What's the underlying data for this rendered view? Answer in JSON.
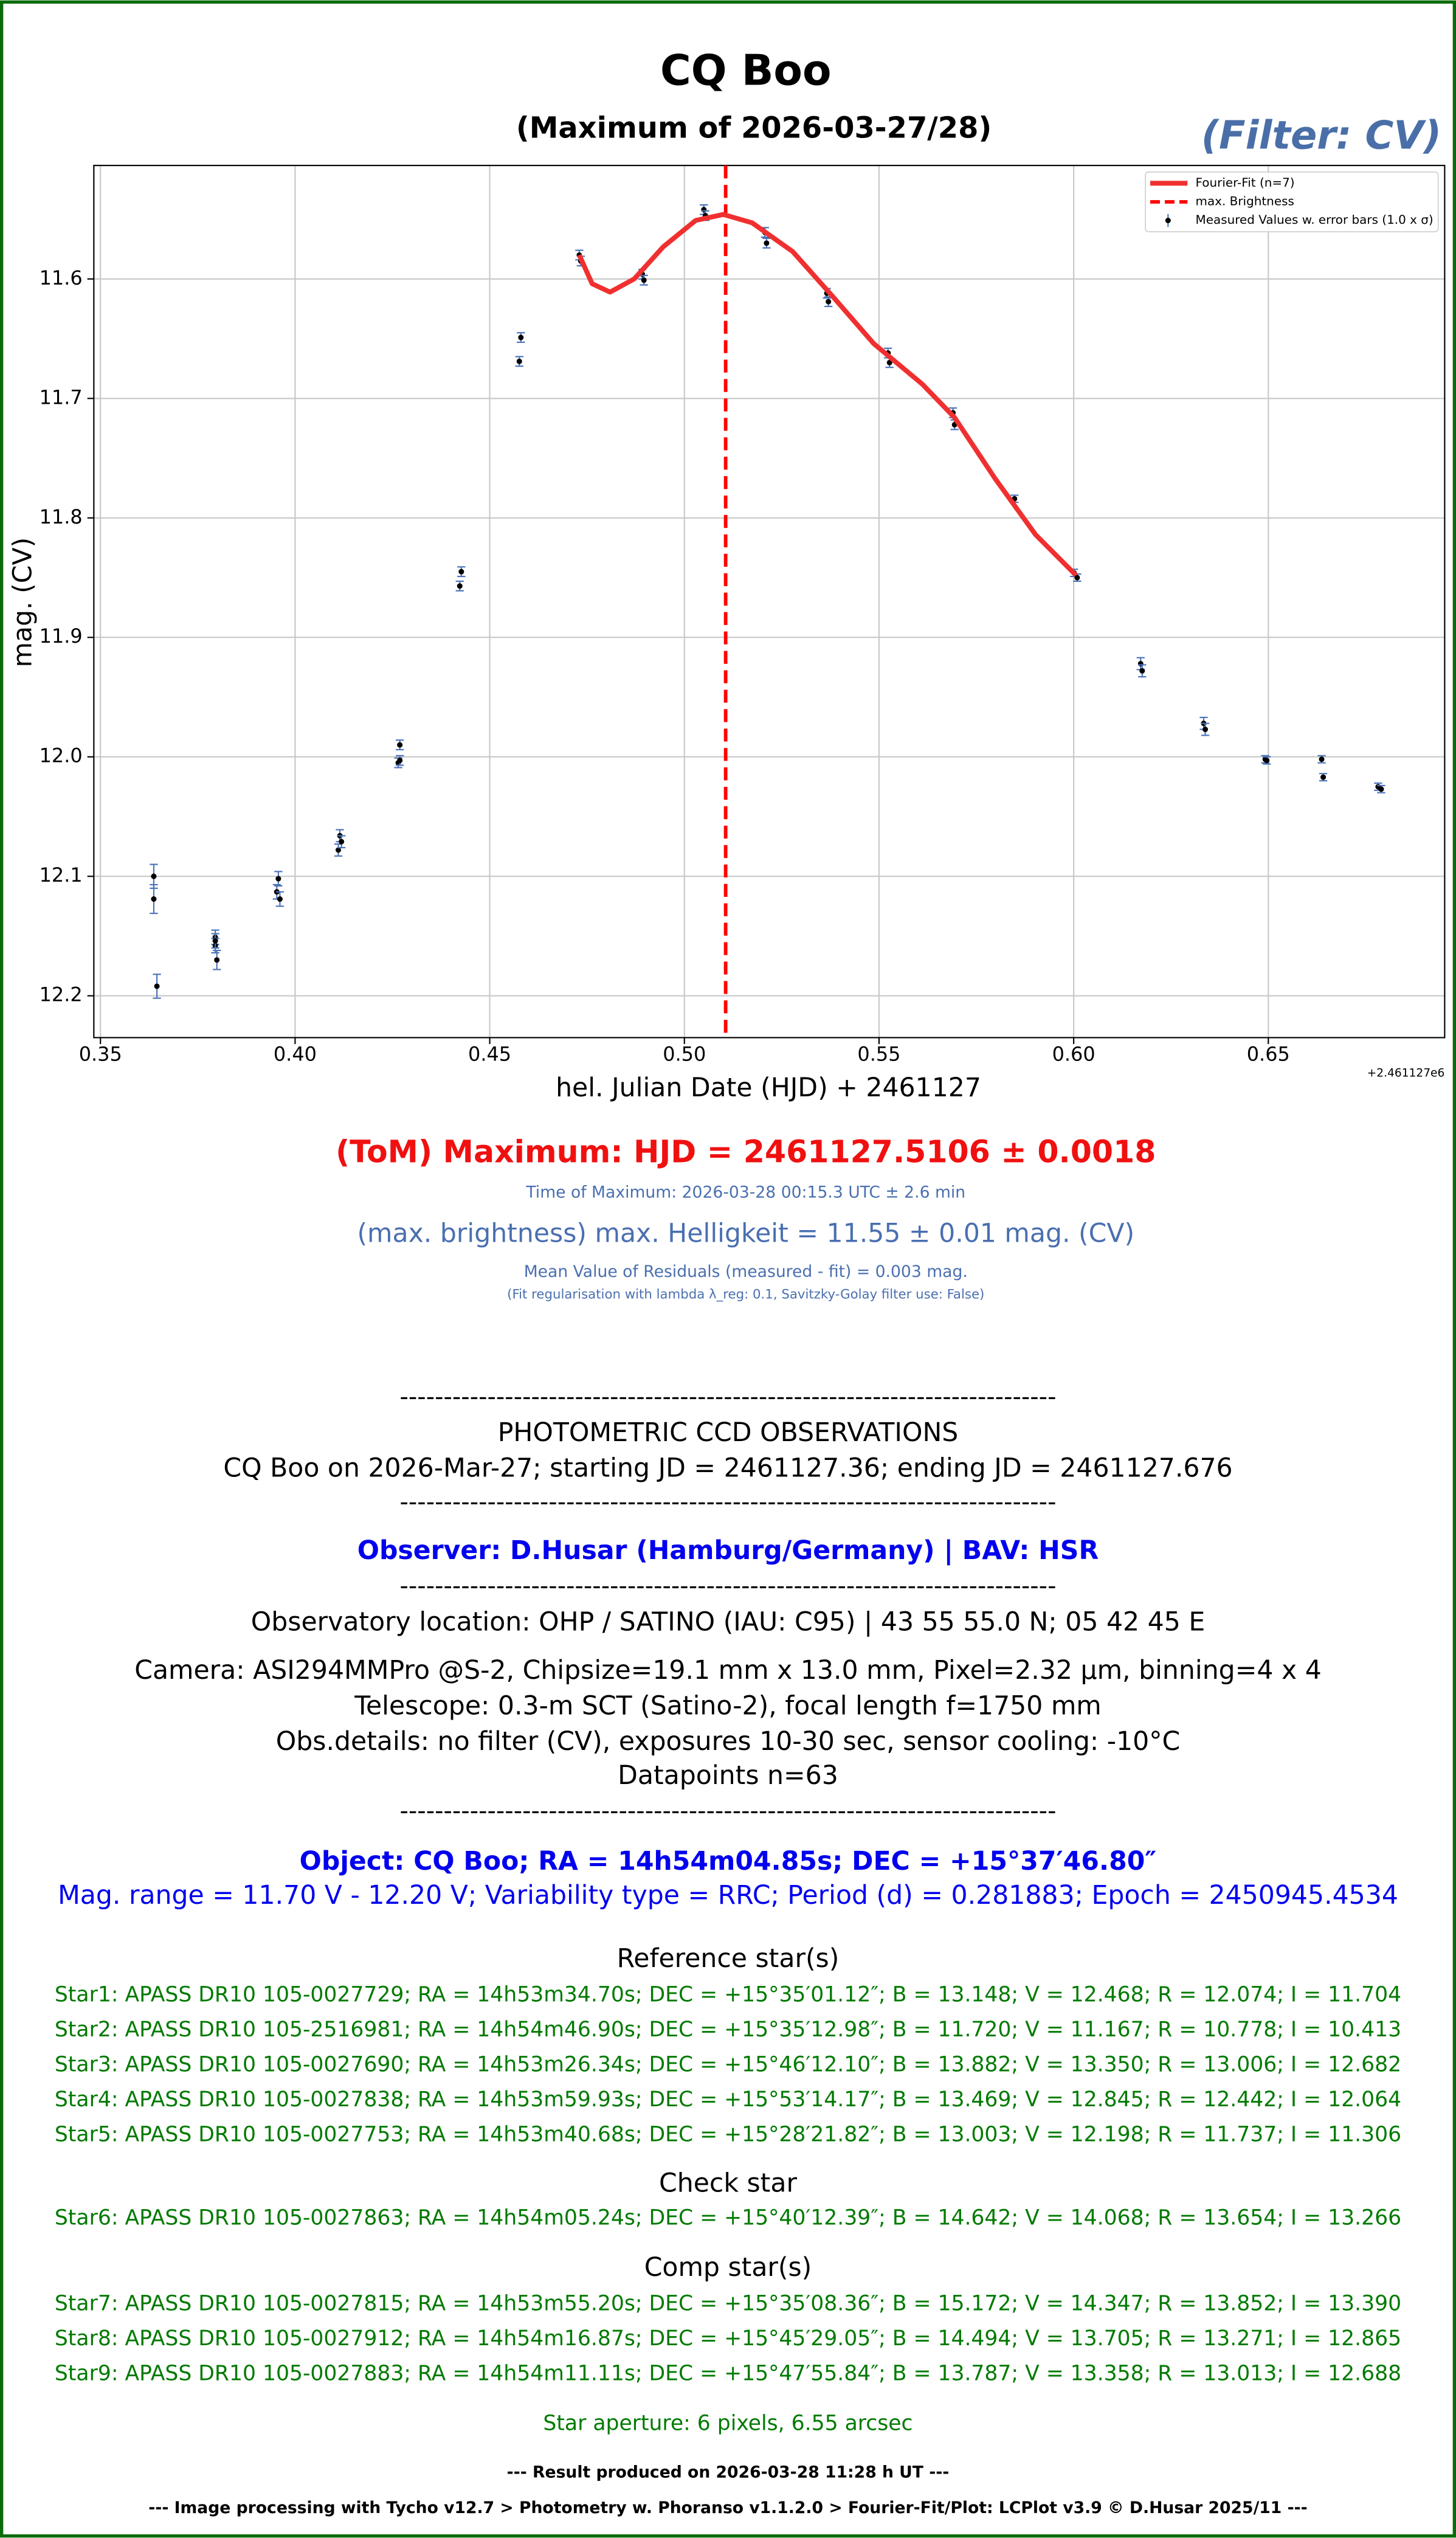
{
  "chart_data": {
    "type": "lightcurve",
    "title": "CQ Boo",
    "subtitle": "(Maximum of 2026-03-27/28)",
    "filter_label": "(Filter: CV)",
    "x_label": "hel. Julian Date (HJD) + 2461127",
    "y_label": "mag. (CV)",
    "offset_label": "+2.461127e6",
    "xlim": [
      0.3483,
      0.6953
    ],
    "ylim": [
      11.505,
      12.235
    ],
    "y_inverted": true,
    "xticks": [
      0.35,
      {
        "value": 0.4,
        "label": "0.40"
      },
      0.45,
      {
        "value": 0.5,
        "label": "0.50"
      },
      0.55,
      {
        "value": 0.6,
        "label": "0.60"
      },
      0.65
    ],
    "yticks": [
      11.6,
      11.7,
      11.8,
      11.9,
      {
        "value": 12,
        "label": "12.0"
      },
      12.1,
      12.2
    ],
    "grid": true,
    "legend": "upper right",
    "series": [
      {
        "name": "Fourier-Fit (n=7)",
        "color": "#f03030",
        "x": [
          0.473,
          0.4763,
          0.4809,
          0.4871,
          0.4946,
          0.5029,
          0.51,
          0.5174,
          0.5278,
          0.5382,
          0.5486,
          0.5611,
          0.5694,
          0.5798,
          0.5902,
          0.6006
        ],
        "values": [
          11.58,
          11.604,
          11.611,
          11.6,
          11.573,
          11.551,
          11.546,
          11.553,
          11.577,
          11.615,
          11.654,
          11.688,
          11.716,
          11.767,
          11.814,
          11.848
        ]
      },
      {
        "name": "max. Brightness",
        "color": "#ff0000",
        "x": [
          0.5106
        ]
      },
      {
        "name": "Measured Values w. error bars (1.0 x σ)",
        "color": "#000000",
        "error_color": "#4a72b8",
        "x": [
          0.3637,
          0.3637,
          0.3645,
          0.3795,
          0.3795,
          0.3799,
          0.3795,
          0.3957,
          0.3953,
          0.3961,
          0.4115,
          0.4111,
          0.4119,
          0.4269,
          0.4265,
          0.4269,
          0.4427,
          0.4423,
          0.458,
          0.4576,
          0.473,
          0.4734,
          0.4892,
          0.4896,
          0.505,
          0.5054,
          0.5207,
          0.5211,
          0.5366,
          0.537,
          0.5523,
          0.5527,
          0.569,
          0.5694,
          0.5848,
          0.6001,
          0.6009,
          0.6172,
          0.6176,
          0.6334,
          0.6338,
          0.6492,
          0.6496,
          0.6637,
          0.6641,
          0.6782,
          0.679
        ],
        "values": [
          12.1,
          12.119,
          12.192,
          12.151,
          12.158,
          12.17,
          12.154,
          12.102,
          12.113,
          12.119,
          12.066,
          12.078,
          12.071,
          11.99,
          12.005,
          12.003,
          11.845,
          11.857,
          11.649,
          11.669,
          11.58,
          11.585,
          11.596,
          11.601,
          11.542,
          11.547,
          11.561,
          11.57,
          11.612,
          11.619,
          11.662,
          11.67,
          11.712,
          11.722,
          11.784,
          11.846,
          11.85,
          11.922,
          11.928,
          11.972,
          11.977,
          12.002,
          12.003,
          12.002,
          12.017,
          12.025,
          12.027
        ],
        "errors": [
          0.01,
          0.012,
          0.01,
          0.006,
          0.006,
          0.008,
          0.006,
          0.006,
          0.006,
          0.006,
          0.005,
          0.005,
          0.005,
          0.004,
          0.004,
          0.004,
          0.004,
          0.004,
          0.004,
          0.004,
          0.004,
          0.004,
          0.004,
          0.004,
          0.004,
          0.004,
          0.004,
          0.004,
          0.004,
          0.004,
          0.004,
          0.004,
          0.004,
          0.004,
          0.003,
          0.003,
          0.003,
          0.005,
          0.005,
          0.005,
          0.005,
          0.003,
          0.003,
          0.003,
          0.003,
          0.003,
          0.003
        ]
      }
    ]
  },
  "report": {
    "tom": "(ToM) Maximum: HJD = 2461127.5106 ± 0.0018",
    "time": "Time of Maximum:   2026-03-28   00:15.3 UTC ± 2.6 min",
    "max_brightness": "(max. brightness) max. Helligkeit = 11.55 ± 0.01 mag. (CV)",
    "residuals": "Mean Value of Residuals (measured - fit) = 0.003 mag.",
    "regularisation": "(Fit regularisation with lambda λ_reg: 0.1, Savitzky-Golay filter use: False)",
    "separators": [
      "---------------------------------------------------------------------------",
      "---------------------------------------------------------------------------",
      "---------------------------------------------------------------------------",
      "---------------------------------------------------------------------------"
    ],
    "heading": "PHOTOMETRIC CCD OBSERVATIONS",
    "observation": "CQ Boo on 2026-Mar-27; starting JD = 2461127.36; ending JD = 2461127.676",
    "observer": "Observer: D.Husar (Hamburg/Germany) | BAV: HSR",
    "location": "Observatory location: OHP / SATINO (IAU: C95) | 43 55 55.0 N; 05 42 45 E",
    "camera": "Camera: ASI294MMPro @S-2, Chipsize=19.1 mm x 13.0 mm, Pixel=2.32 µm, binning=4 x 4",
    "telescope": "Telescope: 0.3-m SCT (Satino-2), focal length f=1750 mm",
    "details": "Obs.details: no filter (CV), exposures 10-30 sec, sensor cooling: -10°C",
    "datapoints": "Datapoints n=63",
    "object": "Object: CQ Boo; RA = 14h54m04.85s; DEC = +15°37′46.80″",
    "mag_range": "Mag. range = 11.70 V - 12.20 V; Variability type = RRC; Period (d) = 0.281883; Epoch = 2450945.4534",
    "ref_heading": "Reference star(s)",
    "ref_stars": [
      "Star1: APASS DR10 105-0027729; RA = 14h53m34.70s; DEC = +15°35′01.12″; B = 13.148; V = 12.468; R = 12.074; I = 11.704",
      "Star2: APASS DR10 105-2516981; RA = 14h54m46.90s; DEC = +15°35′12.98″; B = 11.720; V = 11.167; R = 10.778; I = 10.413",
      "Star3: APASS DR10 105-0027690; RA = 14h53m26.34s; DEC = +15°46′12.10″; B = 13.882; V = 13.350; R = 13.006; I = 12.682",
      "Star4: APASS DR10 105-0027838; RA = 14h53m59.93s; DEC = +15°53′14.17″; B = 13.469; V = 12.845; R = 12.442; I = 12.064",
      "Star5: APASS DR10 105-0027753; RA = 14h53m40.68s; DEC = +15°28′21.82″; B = 13.003; V = 12.198; R = 11.737; I = 11.306"
    ],
    "check_heading": "Check star",
    "check_stars": [
      "Star6: APASS DR10 105-0027863; RA = 14h54m05.24s; DEC = +15°40′12.39″; B = 14.642; V = 14.068; R = 13.654; I = 13.266"
    ],
    "comp_heading": "Comp star(s)",
    "comp_stars": [
      "Star7: APASS DR10 105-0027815; RA = 14h53m55.20s; DEC = +15°35′08.36″; B = 15.172; V = 14.347; R = 13.852; I = 13.390",
      "Star8: APASS DR10 105-0027912; RA = 14h54m16.87s; DEC = +15°45′29.05″; B = 14.494; V = 13.705; R = 13.271; I = 12.865",
      "Star9: APASS DR10 105-0027883; RA = 14h54m11.11s; DEC = +15°47′55.84″; B = 13.787; V = 13.358; R = 13.013; I = 12.688"
    ],
    "aperture": "Star aperture: 6 pixels, 6.55 arcsec",
    "result": "--- Result produced on 2026-03-28 11:28 h UT ---",
    "footer": "--- Image processing with Tycho v12.7 > Photometry w. Phoranso v1.1.2.0 > Fourier-Fit/Plot: LCPlot v3.9 © D.Husar 2025/11 ---"
  }
}
